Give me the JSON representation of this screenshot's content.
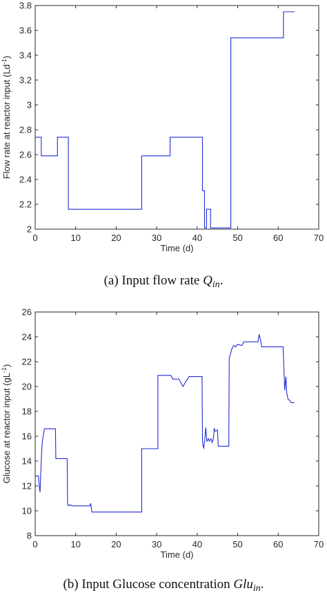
{
  "chart_data": [
    {
      "type": "line",
      "xlabel": "Time (d)",
      "ylabel": "Flow rate at reactor input (Ld",
      "ylabel_sup": "-1",
      "ylabel_tail": ")",
      "xlim": [
        0,
        70
      ],
      "ylim": [
        2,
        3.8
      ],
      "xticks": [
        0,
        10,
        20,
        30,
        40,
        50,
        60,
        70
      ],
      "yticks": [
        2,
        2.2,
        2.4,
        2.6,
        2.8,
        3,
        3.2,
        3.4,
        3.6,
        3.8
      ],
      "xtick_labels": [
        "0",
        "10",
        "20",
        "30",
        "40",
        "50",
        "60",
        "70"
      ],
      "ytick_labels": [
        "2",
        "2.2",
        "2.4",
        "2.6",
        "2.8",
        "3",
        "3.2",
        "3.4",
        "3.6",
        "3.8"
      ],
      "series": [
        {
          "color": "#1f2bd6",
          "x": [
            0,
            1.5,
            1.5,
            5.5,
            5.5,
            8.2,
            8.2,
            26.3,
            26.3,
            33.3,
            33.3,
            41.3,
            41.3,
            41.8,
            41.8,
            42.3,
            42.3,
            43.3,
            43.3,
            44,
            44,
            44.1,
            44.1,
            48.3,
            48.3,
            61.3,
            61.3,
            64
          ],
          "y": [
            2.74,
            2.74,
            2.59,
            2.59,
            2.74,
            2.74,
            2.16,
            2.16,
            2.59,
            2.59,
            2.74,
            2.74,
            2.31,
            2.31,
            2.01,
            2.01,
            2.16,
            2.16,
            2.01,
            2.01,
            2.01,
            2.01,
            2.01,
            2.01,
            3.54,
            3.54,
            3.75,
            3.75
          ]
        }
      ]
    },
    {
      "type": "line",
      "xlabel": "Time (d)",
      "ylabel": "Glucose at reactor input (gL",
      "ylabel_sup": "-1",
      "ylabel_tail": ")",
      "xlim": [
        0,
        70
      ],
      "ylim": [
        8,
        26
      ],
      "xticks": [
        0,
        10,
        20,
        30,
        40,
        50,
        60,
        70
      ],
      "yticks": [
        8,
        10,
        12,
        14,
        16,
        18,
        20,
        22,
        24,
        26
      ],
      "xtick_labels": [
        "0",
        "10",
        "20",
        "30",
        "40",
        "50",
        "60",
        "70"
      ],
      "ytick_labels": [
        "8",
        "10",
        "12",
        "14",
        "16",
        "18",
        "20",
        "22",
        "24",
        "26"
      ],
      "series": [
        {
          "color": "#1f2bd6",
          "x": [
            0,
            0.8,
            1.0,
            1.2,
            1.4,
            1.6,
            1.8,
            2.3,
            2.5,
            5.0,
            5.1,
            7.9,
            8.0,
            8.3,
            8.6,
            9.0,
            9.5,
            13.5,
            13.7,
            14.0,
            14.2,
            26.3,
            26.3,
            30.3,
            30.3,
            33.5,
            34.0,
            35.5,
            36.0,
            36.5,
            37.0,
            38.0,
            41.2,
            41.3,
            41.6,
            41.9,
            42.1,
            42.4,
            42.8,
            43.0,
            43.4,
            43.7,
            44.0,
            44.2,
            44.5,
            45.0,
            45.2,
            45.5,
            47.8,
            47.9,
            48.2,
            48.5,
            49.0,
            49.5,
            50.0,
            51.0,
            51.5,
            52.0,
            55.0,
            55.3,
            55.6,
            55.9,
            56.1,
            61.2,
            61.4,
            61.6,
            61.9,
            62.1,
            62.4,
            62.8,
            63.2,
            64
          ],
          "y": [
            12.8,
            12.8,
            12.0,
            11.5,
            13.2,
            14.8,
            15.7,
            16.6,
            16.6,
            16.6,
            14.2,
            14.2,
            10.5,
            10.4,
            10.5,
            10.4,
            10.4,
            10.4,
            10.6,
            9.9,
            9.9,
            9.9,
            15.0,
            15.0,
            20.9,
            20.9,
            20.6,
            20.6,
            20.3,
            20.0,
            20.3,
            20.8,
            20.8,
            15.6,
            15.0,
            15.8,
            16.7,
            15.6,
            15.8,
            15.6,
            15.8,
            15.5,
            15.8,
            16.6,
            16.4,
            16.5,
            15.2,
            15.2,
            15.2,
            22.3,
            22.6,
            23.0,
            23.3,
            23.2,
            23.4,
            23.3,
            23.6,
            23.6,
            23.6,
            24.2,
            23.8,
            23.2,
            23.2,
            23.2,
            21.5,
            19.7,
            20.8,
            19.5,
            19.0,
            18.9,
            18.7,
            18.7
          ]
        }
      ]
    }
  ],
  "captions": {
    "a_prefix": "(a) Input flow rate ",
    "a_var": "Q",
    "a_sub": "in",
    "a_suffix": ".",
    "b_prefix": "(b) Input Glucose concentration ",
    "b_var": "Glu",
    "b_sub": "in",
    "b_suffix": "."
  }
}
